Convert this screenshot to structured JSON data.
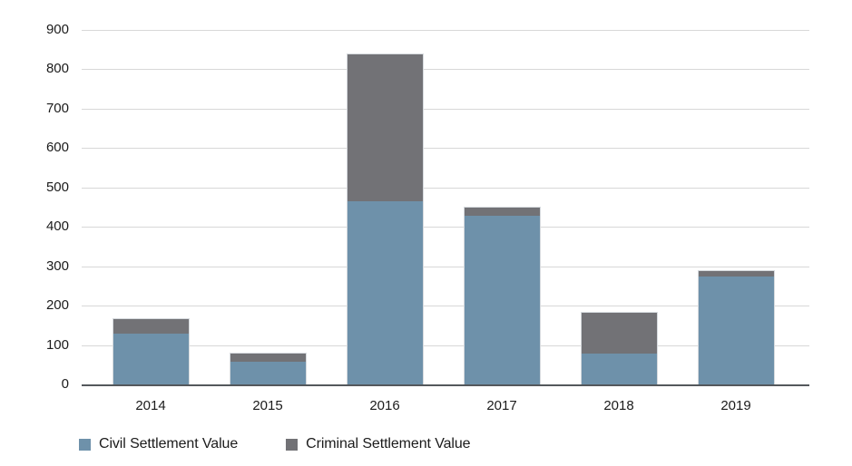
{
  "chart_data": {
    "type": "bar",
    "stacked": true,
    "title": "",
    "xlabel": "",
    "ylabel": "",
    "categories": [
      "2014",
      "2015",
      "2016",
      "2017",
      "2018",
      "2019"
    ],
    "series": [
      {
        "name": "Civil Settlement Value",
        "color": "#6e91aa",
        "values": [
          130,
          60,
          465,
          430,
          80,
          275
        ]
      },
      {
        "name": "Criminal Settlement Value",
        "color": "#727276",
        "values": [
          38,
          20,
          373,
          20,
          105,
          15
        ]
      }
    ],
    "stack_totals": [
      168,
      80,
      838,
      450,
      185,
      290
    ],
    "ylim": [
      0,
      900
    ],
    "y_ticks": [
      0,
      100,
      200,
      300,
      400,
      500,
      600,
      700,
      800,
      900
    ],
    "grid": "horizontal",
    "legend_position": "bottom-left"
  },
  "colors": {
    "background": "#ffffff",
    "grid_line": "#d8d8d8",
    "axis_line": "#54585c",
    "text": "#1b1b1b"
  }
}
